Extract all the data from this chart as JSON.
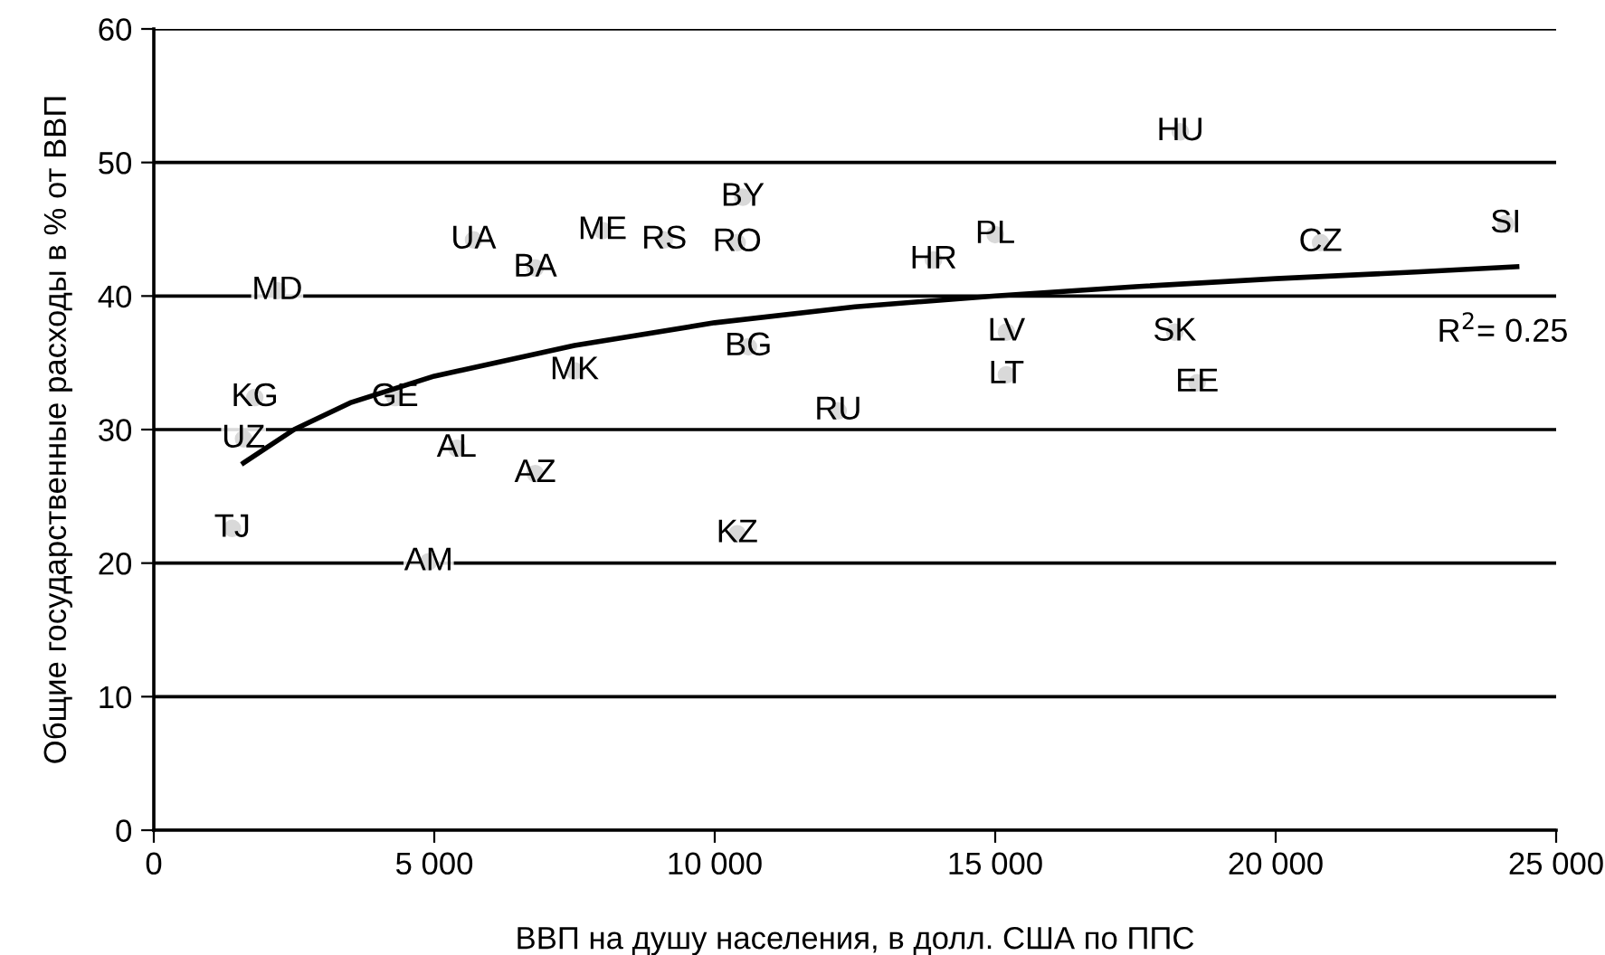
{
  "chart_data": {
    "type": "scatter",
    "xlabel": "ВВП на душу населения, в долл. США по ППС",
    "ylabel": "Общие государственные расходы в % от ВВП",
    "xlim": [
      0,
      25000
    ],
    "ylim": [
      0,
      60
    ],
    "xticks": [
      0,
      {
        "value": 5000,
        "label": "5 000"
      },
      {
        "value": 10000,
        "label": "10 000"
      },
      {
        "value": 15000,
        "label": "15 000"
      },
      {
        "value": 20000,
        "label": "20 000"
      },
      {
        "value": 25000,
        "label": "25 000"
      }
    ],
    "yticks": [
      0,
      10,
      20,
      30,
      40,
      50,
      60
    ],
    "grid": "y",
    "series": [
      {
        "color": "#000000",
        "x": [
          18300,
          24100,
          20800,
          15000,
          13900,
          10500,
          10400,
          9100,
          8000,
          5700,
          6800,
          2200,
          15200,
          15200,
          18200,
          18600,
          10600,
          7500,
          12200,
          1800,
          4300,
          1600,
          5400,
          6800,
          1400,
          10400,
          4900
        ],
        "values": [
          52.3,
          45.4,
          44.0,
          44.6,
          42.7,
          47.4,
          44.0,
          44.2,
          44.9,
          44.2,
          42.1,
          40.4,
          37.3,
          34.1,
          37.3,
          33.5,
          36.2,
          34.4,
          31.4,
          32.4,
          32.4,
          29.3,
          28.6,
          26.7,
          22.6,
          22.2,
          20.1
        ],
        "value_labels": [
          "HU",
          "SI",
          "CZ",
          "PL",
          "HR",
          "BY",
          "RO",
          "RS",
          "ME",
          "UA",
          "BA",
          "MD",
          "LV",
          "LT",
          "SK",
          "EE",
          "BG",
          "MK",
          "RU",
          "KG",
          "GE",
          "UZ",
          "AL",
          "AZ",
          "TJ",
          "KZ",
          "AM"
        ]
      },
      {
        "type": "line",
        "color": "#000000",
        "x": [
          1600,
          2500,
          3500,
          5000,
          7500,
          10000,
          12500,
          15000,
          17500,
          20000,
          22500,
          24300
        ],
        "values": [
          27.5,
          30.0,
          32.0,
          34.0,
          36.3,
          38.0,
          39.2,
          40.0,
          40.7,
          41.3,
          41.8,
          42.2
        ]
      }
    ],
    "annotations": [
      "R$^{2}$= 0.25"
    ]
  }
}
